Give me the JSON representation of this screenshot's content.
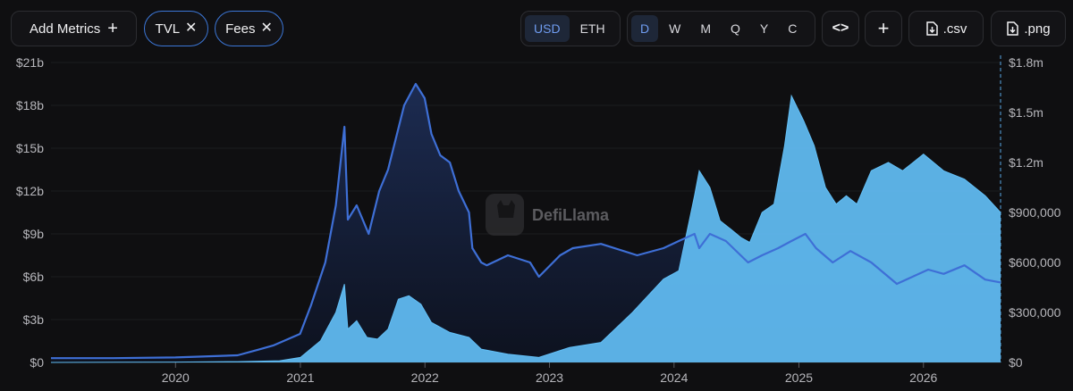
{
  "toolbar": {
    "add_metrics_label": "Add Metrics",
    "add_icon": "+",
    "metric_tags": [
      {
        "label": "TVL",
        "remove_icon": "✕"
      },
      {
        "label": "Fees",
        "remove_icon": "✕"
      }
    ],
    "currency_options": [
      {
        "label": "USD",
        "active": true
      },
      {
        "label": "ETH",
        "active": false
      }
    ],
    "interval_options": [
      {
        "label": "D",
        "active": true
      },
      {
        "label": "W",
        "active": false
      },
      {
        "label": "M",
        "active": false
      },
      {
        "label": "Q",
        "active": false
      },
      {
        "label": "Y",
        "active": false
      },
      {
        "label": "C",
        "active": false
      }
    ],
    "embed_icon": "<>",
    "add_chart_icon": "+",
    "csv_label": ".csv",
    "png_label": ".png"
  },
  "watermark": "DefiLlama",
  "chart_data": {
    "type": "line",
    "x_ticks": [
      "2020",
      "2021",
      "2022",
      "2023",
      "2024",
      "2025",
      "2026"
    ],
    "x_range": [
      "2019-01-01",
      "2026-08-15"
    ],
    "left_axis": {
      "ticks": [
        "$0",
        "$3b",
        "$6b",
        "$9b",
        "$12b",
        "$15b",
        "$18b",
        "$21b"
      ],
      "ylim": [
        0,
        21000000000
      ]
    },
    "right_axis": {
      "ticks": [
        "$0",
        "$300,000",
        "$600,000",
        "$900,000",
        "$1.2m",
        "$1.5m",
        "$1.8m"
      ],
      "ylim": [
        0,
        1800000
      ]
    },
    "colors": {
      "tvl": "#3e6fd6",
      "fees": "#62bef5"
    },
    "series": [
      {
        "name": "TVL",
        "axis": "left",
        "x": [
          "2019-01-01",
          "2019-07-01",
          "2020-01-01",
          "2020-03-01",
          "2020-07-01",
          "2020-09-01",
          "2020-10-15",
          "2020-12-31",
          "2021-02-01",
          "2021-03-15",
          "2021-04-15",
          "2021-05-10",
          "2021-05-20",
          "2021-06-15",
          "2021-07-20",
          "2021-08-20",
          "2021-09-15",
          "2021-11-01",
          "2021-12-05",
          "2021-12-31",
          "2022-01-20",
          "2022-02-15",
          "2022-03-15",
          "2022-04-10",
          "2022-05-10",
          "2022-05-20",
          "2022-06-15",
          "2022-07-01",
          "2022-09-01",
          "2022-11-05",
          "2022-12-01",
          "2023-02-01",
          "2023-03-10",
          "2023-06-01",
          "2023-09-15",
          "2023-12-01",
          "2024-01-15",
          "2024-03-01",
          "2024-03-15",
          "2024-04-15",
          "2024-06-01",
          "2024-08-05",
          "2024-09-15",
          "2024-11-01",
          "2024-12-10",
          "2025-01-20",
          "2025-02-20",
          "2025-04-10",
          "2025-06-01",
          "2025-08-01",
          "2025-10-15",
          "2026-01-15",
          "2026-03-01",
          "2026-05-01",
          "2026-07-01",
          "2026-08-15"
        ],
        "values": [
          300000000,
          300000000,
          350000000,
          400000000,
          500000000,
          900000000,
          1200000000,
          2000000000,
          4000000000,
          7000000000,
          11000000000,
          16500000000,
          10000000000,
          11000000000,
          9000000000,
          12000000000,
          13500000000,
          18000000000,
          19500000000,
          18500000000,
          16000000000,
          14500000000,
          14000000000,
          12000000000,
          10500000000,
          8000000000,
          7000000000,
          6800000000,
          7500000000,
          7000000000,
          6000000000,
          7500000000,
          8000000000,
          8300000000,
          7500000000,
          8000000000,
          8500000000,
          9000000000,
          8000000000,
          9000000000,
          8500000000,
          7000000000,
          7500000000,
          8000000000,
          8500000000,
          9000000000,
          8000000000,
          7000000000,
          7800000000,
          7000000000,
          5500000000,
          6500000000,
          6200000000,
          6800000000,
          5800000000,
          5600000000
        ]
      },
      {
        "name": "Fees",
        "axis": "right",
        "x": [
          "2019-01-01",
          "2020-01-01",
          "2020-07-01",
          "2020-11-01",
          "2021-01-01",
          "2021-03-01",
          "2021-04-15",
          "2021-05-10",
          "2021-05-20",
          "2021-06-15",
          "2021-07-15",
          "2021-08-15",
          "2021-09-15",
          "2021-10-15",
          "2021-11-15",
          "2021-12-20",
          "2022-01-20",
          "2022-03-15",
          "2022-05-10",
          "2022-06-15",
          "2022-09-01",
          "2022-12-01",
          "2023-03-01",
          "2023-06-01",
          "2023-09-01",
          "2023-12-01",
          "2024-01-15",
          "2024-03-01",
          "2024-03-15",
          "2024-04-15",
          "2024-05-15",
          "2024-06-15",
          "2024-07-15",
          "2024-08-10",
          "2024-09-15",
          "2024-10-20",
          "2024-11-20",
          "2024-12-10",
          "2025-01-15",
          "2025-02-15",
          "2025-03-20",
          "2025-04-20",
          "2025-05-20",
          "2025-06-20",
          "2025-08-01",
          "2025-09-20",
          "2025-11-01",
          "2026-01-01",
          "2026-03-01",
          "2026-05-01",
          "2026-07-01",
          "2026-08-15"
        ],
        "values": [
          0,
          2000,
          5000,
          10000,
          30000,
          130000,
          300000,
          470000,
          200000,
          250000,
          150000,
          140000,
          200000,
          380000,
          400000,
          350000,
          240000,
          180000,
          150000,
          80000,
          50000,
          30000,
          90000,
          120000,
          300000,
          500000,
          550000,
          1000000,
          1150000,
          1050000,
          850000,
          800000,
          750000,
          720000,
          900000,
          950000,
          1300000,
          1600000,
          1450000,
          1300000,
          1050000,
          950000,
          1000000,
          950000,
          1150000,
          1200000,
          1150000,
          1250000,
          1150000,
          1100000,
          1000000,
          900000
        ]
      }
    ]
  }
}
